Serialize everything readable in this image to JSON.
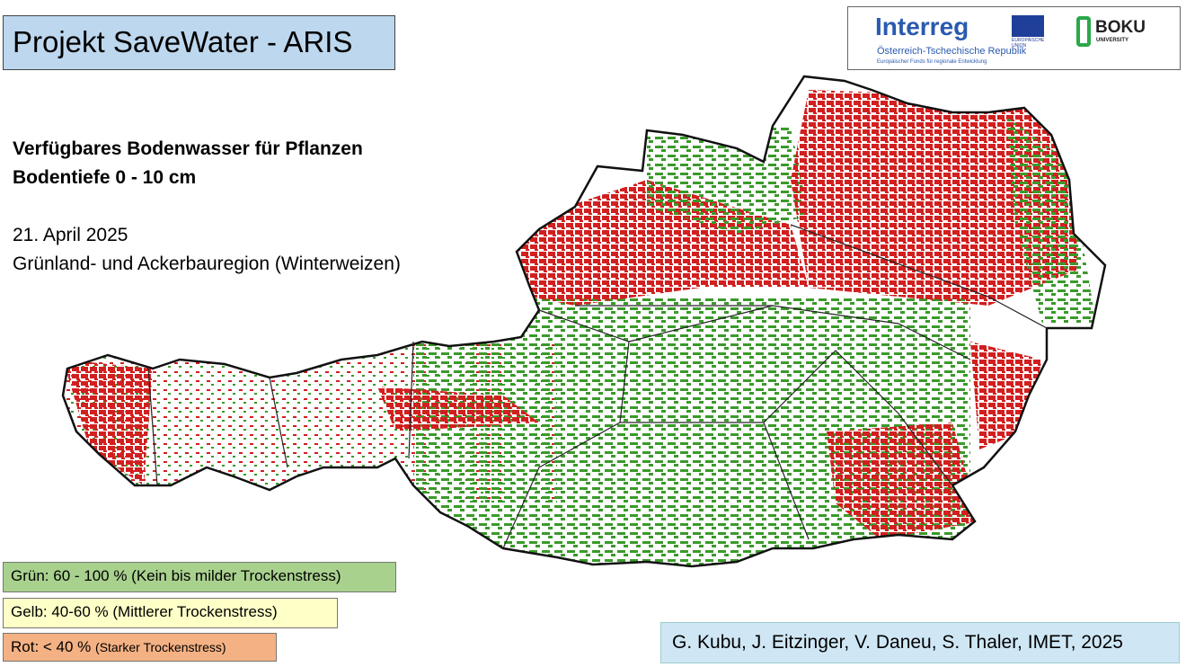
{
  "header": {
    "title": "Projekt SaveWater - ARIS"
  },
  "logos": {
    "interreg": "Interreg",
    "eu_line1": "EUROPÄISCHE",
    "eu_line2": "UNION",
    "program": "Österreich-Tschechische Republik",
    "fund": "Europäischer Fonds für regionale Entwicklung",
    "boku": "BOKU",
    "boku_sub": "UNIVERSITY"
  },
  "info": {
    "line1": "Verfügbares Bodenwasser für Pflanzen",
    "line2": "Bodentiefe 0 - 10 cm",
    "date": "21. April 2025",
    "region": "Grünland- und Ackerbauregion (Winterweizen)"
  },
  "legend": {
    "green": "Grün: 60 - 100 % (Kein bis milder Trockenstress)",
    "yellow": "Gelb: 40-60 % (Mittlerer Trockenstress)",
    "red_main": "Rot: < 40 %",
    "red_note": "(Starker Trockenstress)"
  },
  "credit": "G. Kubu, J. Eitzinger, V. Daneu, S. Thaler, IMET, 2025"
}
